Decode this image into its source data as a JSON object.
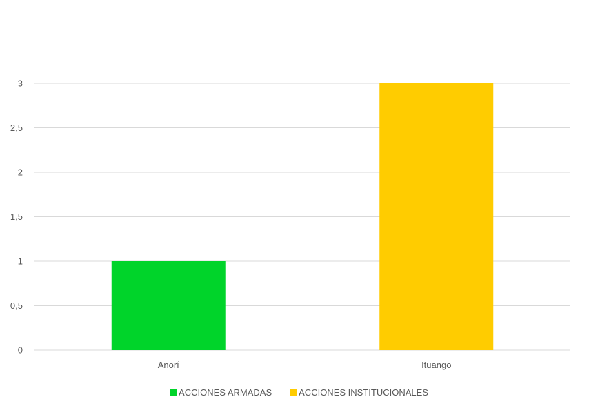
{
  "chart_data": {
    "type": "bar",
    "categories": [
      "Anorí",
      "Ituango"
    ],
    "series": [
      {
        "name": "ACCIONES ARMADAS",
        "values": [
          1,
          null
        ],
        "color": "#00D42A"
      },
      {
        "name": "ACCIONES INSTITUCIONALES",
        "values": [
          null,
          3
        ],
        "color": "#FFCC00"
      }
    ],
    "title": "",
    "xlabel": "",
    "ylabel": "",
    "ylim": [
      0,
      3
    ],
    "yticks": [
      0,
      0.5,
      1,
      1.5,
      2,
      2.5,
      3
    ],
    "ytick_labels": [
      "0",
      "0,5",
      "1",
      "1,5",
      "2",
      "2,5",
      "3"
    ],
    "grid": true,
    "legend_position": "bottom",
    "gridline_color": "#D9D9D9"
  }
}
